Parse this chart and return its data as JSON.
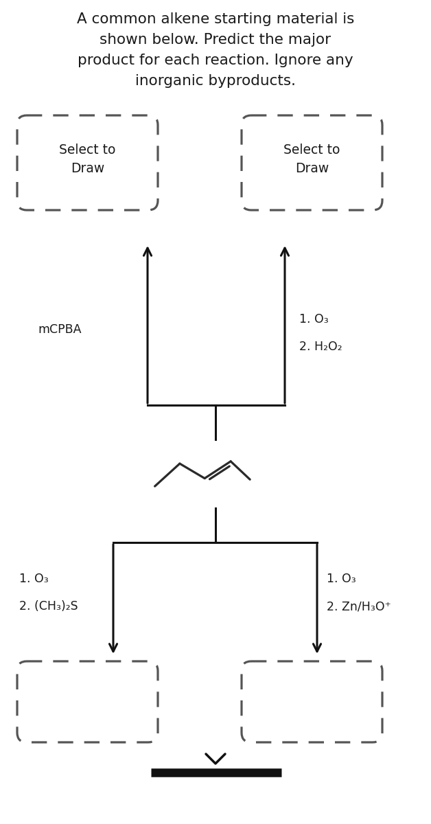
{
  "title_lines": [
    "A common alkene starting material is",
    "shown below. Predict the major",
    "product for each reaction. Ignore any",
    "inorganic byproducts."
  ],
  "select_to_draw": "Select to\nDraw",
  "reagent_1": "mCPBA",
  "reagent_2a": "1. O₃",
  "reagent_2b": "2. H₂O₂",
  "reagent_3a": "1. O₃",
  "reagent_3b": "2. (CH₃)₂S",
  "reagent_4a": "1. O₃",
  "reagent_4b": "2. Zn/H₃O⁺",
  "bg_color": "#ffffff",
  "text_color": "#1a1a1a",
  "line_color": "#111111",
  "dashed_color": "#555555",
  "title_fontsize": 15.5,
  "label_fontsize": 12.5
}
